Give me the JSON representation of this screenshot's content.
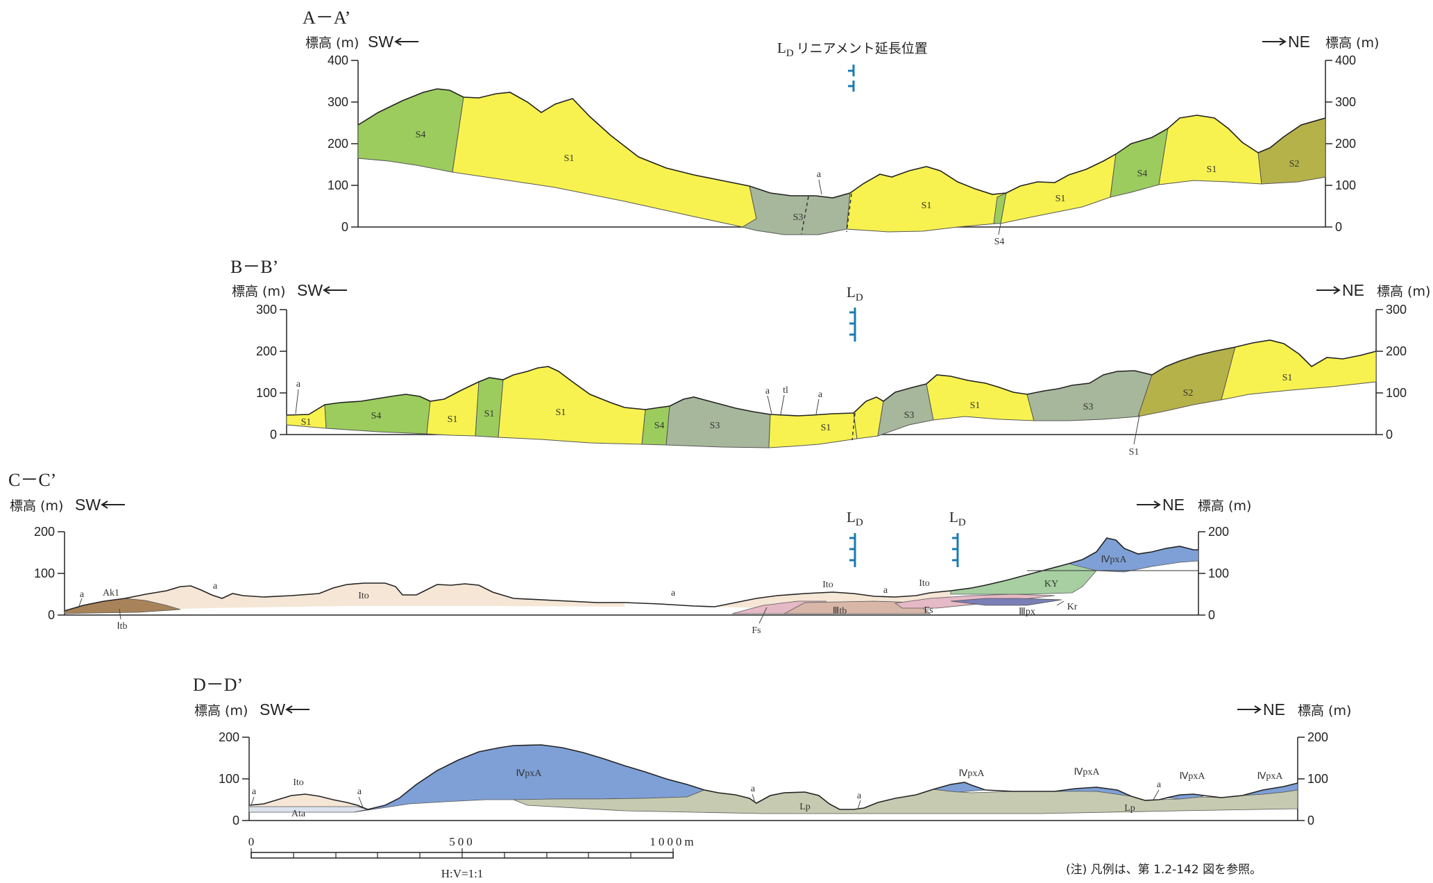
{
  "sections": {
    "aa": {
      "title": "A－A’",
      "left_axis_label": "標高 (m)",
      "right_axis_label": "標高 (m)",
      "sw": "SW",
      "ne": "NE",
      "ticks": [
        "400",
        "300",
        "200",
        "100",
        "0"
      ],
      "lineament_label_main": "L",
      "lineament_label_sub": "D",
      "lineament_label_suffix": "リニアメント延長位置",
      "units": [
        "S4",
        "S1",
        "S3",
        "S1",
        "S1",
        "S4",
        "S1",
        "S2",
        "S4",
        "a"
      ]
    },
    "bb": {
      "title": "B－B’",
      "left_axis_label": "標高 (m)",
      "right_axis_label": "標高 (m)",
      "sw": "SW",
      "ne": "NE",
      "ticks": [
        "300",
        "200",
        "100",
        "0"
      ],
      "lineament_label_main": "L",
      "lineament_label_sub": "D",
      "units": [
        "a",
        "S1",
        "S4",
        "S1",
        "S1",
        "S1",
        "S4",
        "S3",
        "a",
        "tl",
        "a",
        "S1",
        "S3",
        "S1",
        "S3",
        "S2",
        "S1",
        "S1"
      ]
    },
    "cc": {
      "title": "C－C’",
      "left_axis_label": "標高 (m)",
      "right_axis_label": "標高 (m)",
      "sw": "SW",
      "ne": "NE",
      "ticks": [
        "200",
        "100",
        "0"
      ],
      "lineament_label_main": "L",
      "lineament_label_sub": "D",
      "units": [
        "a",
        "Ak1",
        "Ⅰtb",
        "a",
        "Ito",
        "a",
        "Ito",
        "a",
        "Ito",
        "Fs",
        "Ⅲtb",
        "Fs",
        "Ⅲpx",
        "Kr",
        "KY",
        "ⅣpxA"
      ]
    },
    "dd": {
      "title": "D－D’",
      "left_axis_label": "標高 (m)",
      "right_axis_label": "標高 (m)",
      "sw": "SW",
      "ne": "NE",
      "ticks": [
        "200",
        "100",
        "0"
      ],
      "units": [
        "a",
        "Ito",
        "a",
        "Ata",
        "ⅣpxA",
        "a",
        "Lp",
        "a",
        "ⅣpxA",
        "ⅣpxA",
        "a",
        "ⅣpxA",
        "ⅣpxA",
        "Lp"
      ]
    }
  },
  "scale_bar": {
    "ticks": [
      "0",
      "500",
      "1000m"
    ],
    "ratio": "H:V=1:1"
  },
  "note": "(注) 凡例は、第 1.2-142 図を参照。",
  "colors": {
    "S1": "#f7f24f",
    "S2": "#b6b24a",
    "S3": "#a7b79c",
    "S4": "#9ccc5e",
    "Ito": "#f5e6d6",
    "tb": "#a8835a",
    "Fs": "#e6b9c6",
    "IIItb": "#d8b7a8",
    "IIIpx": "#7b7fb6",
    "KY": "#a7cfa2",
    "IVpxA": "#7ea0d6",
    "Lp": "#c6cab0",
    "Ata": "#dde3ee",
    "fault": "#1a7ab3"
  }
}
